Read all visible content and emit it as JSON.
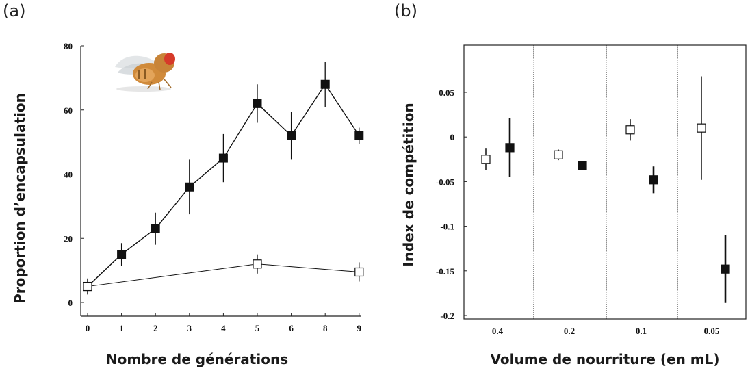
{
  "panels": {
    "a": "(a)",
    "b": "(b)"
  },
  "chart_data": [
    {
      "type": "line",
      "panel": "(a)",
      "xlabel": "Nombre de générations",
      "ylabel": "Proportion d’encapsulation",
      "categories": [
        "0",
        "1",
        "2",
        "3",
        "4",
        "5",
        "6",
        "8",
        "9"
      ],
      "yticks": [
        "0",
        "20",
        "40",
        "60",
        "80"
      ],
      "ylim": [
        0,
        80
      ],
      "series": [
        {
          "marker": "filled-square",
          "x": [
            "0",
            "1",
            "2",
            "3",
            "4",
            "5",
            "6",
            "8",
            "9"
          ],
          "values": [
            5,
            15,
            23,
            36,
            45,
            62,
            52,
            68,
            52
          ],
          "errors": [
            2.5,
            3.5,
            5,
            8.5,
            7.5,
            6,
            7.5,
            7,
            2.5
          ]
        },
        {
          "marker": "open-square",
          "x": [
            "0",
            "5",
            "9"
          ],
          "values": [
            5,
            12,
            9.5
          ],
          "errors": [
            2.5,
            3,
            3
          ]
        }
      ],
      "inset": "fruit-fly-image"
    },
    {
      "type": "scatter",
      "panel": "(b)",
      "xlabel": "Volume de nourriture (en mL)",
      "ylabel": "Index de compétition",
      "categories": [
        "0.4",
        "0.2",
        "0.1",
        "0.05"
      ],
      "yticks": [
        "0.05",
        "0",
        "-0.05",
        "-0.1",
        "-0.15",
        "-0.2"
      ],
      "ylim": [
        -0.2,
        0.1
      ],
      "series": [
        {
          "marker": "open-square",
          "values": [
            -0.025,
            -0.02,
            0.008,
            0.01
          ],
          "errors": [
            0.012,
            0.006,
            0.012,
            0.058
          ]
        },
        {
          "marker": "filled-square",
          "values": [
            -0.012,
            -0.032,
            -0.048,
            -0.148
          ],
          "errors": [
            0.033,
            0.005,
            0.015,
            0.038
          ]
        }
      ]
    }
  ]
}
